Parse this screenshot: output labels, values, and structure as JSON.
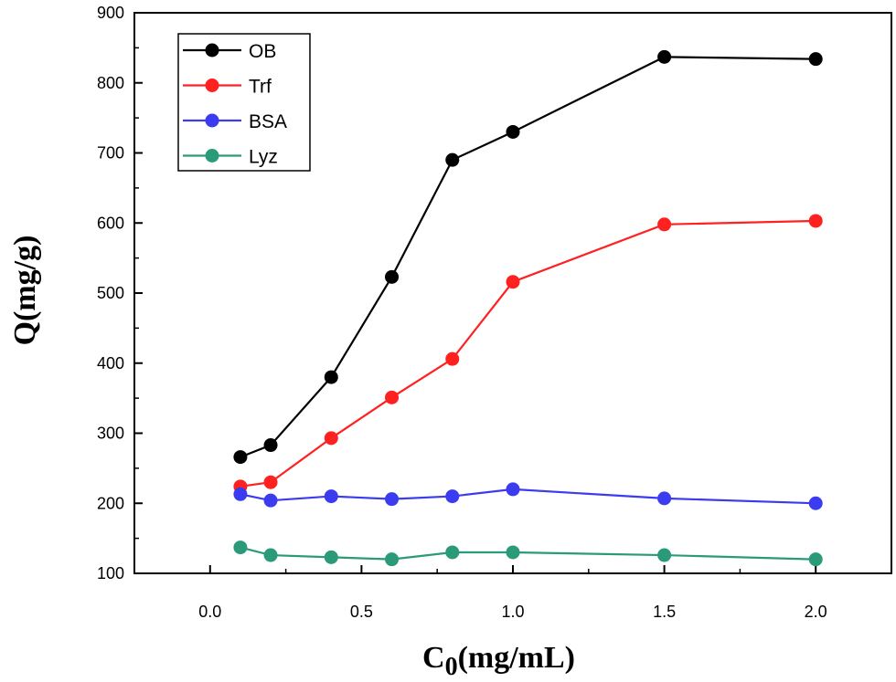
{
  "chart_data": {
    "type": "line",
    "xlabel": "C",
    "xlabel_sub": "0",
    "xlabel_unit": "(mg/mL)",
    "ylabel": "Q(mg/g)",
    "xlim": [
      -0.25,
      2.25
    ],
    "ylim": [
      100,
      900
    ],
    "xticks": [
      "0.0",
      "0.5",
      "1.0",
      "1.5",
      "2.0"
    ],
    "yticks": [
      "100",
      "200",
      "300",
      "400",
      "500",
      "600",
      "700",
      "800",
      "900"
    ],
    "grid": false,
    "legend_position": "top-left",
    "x": [
      0.1,
      0.2,
      0.4,
      0.6,
      0.8,
      1.0,
      1.5,
      2.0
    ],
    "series": [
      {
        "name": "OB",
        "color": "#000000",
        "values": [
          266,
          283,
          380,
          523,
          690,
          730,
          837,
          834
        ]
      },
      {
        "name": "Trf",
        "color": "#ff2020",
        "values": [
          224,
          230,
          293,
          351,
          406,
          516,
          598,
          603
        ]
      },
      {
        "name": "BSA",
        "color": "#3b3bf0",
        "values": [
          213,
          204,
          210,
          206,
          210,
          220,
          207,
          200
        ]
      },
      {
        "name": "Lyz",
        "color": "#2a9a78",
        "values": [
          137,
          126,
          123,
          120,
          130,
          130,
          126,
          120
        ]
      }
    ]
  }
}
